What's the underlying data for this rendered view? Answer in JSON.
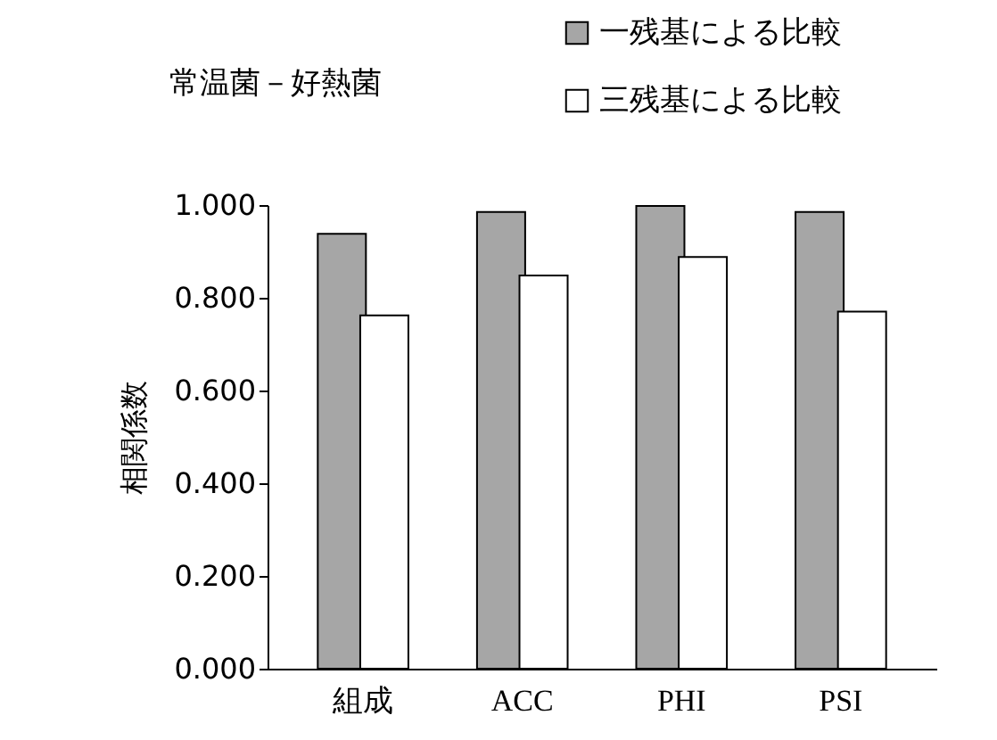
{
  "chart_data": {
    "type": "bar",
    "title": "常温菌－好熱菌",
    "ylabel": "相関係数",
    "categories": [
      "組成",
      "ACC",
      "PHI",
      "PSI"
    ],
    "series": [
      {
        "name": "一残基による比較",
        "color": "#a6a6a6",
        "values": [
          0.938,
          0.985,
          0.998,
          0.985
        ]
      },
      {
        "name": "三残基による比較",
        "color": "#ffffff",
        "values": [
          0.762,
          0.848,
          0.888,
          0.77
        ]
      }
    ],
    "ylim": [
      0,
      1
    ],
    "yticks": [
      {
        "value": 0,
        "label": "0.000"
      },
      {
        "value": 0.2,
        "label": "0.200"
      },
      {
        "value": 0.4,
        "label": "0.400"
      },
      {
        "value": 0.6,
        "label": "0.600"
      },
      {
        "value": 0.8,
        "label": "0.800"
      },
      {
        "value": 1,
        "label": "1.000"
      }
    ],
    "grid": false,
    "legend": "top right"
  }
}
